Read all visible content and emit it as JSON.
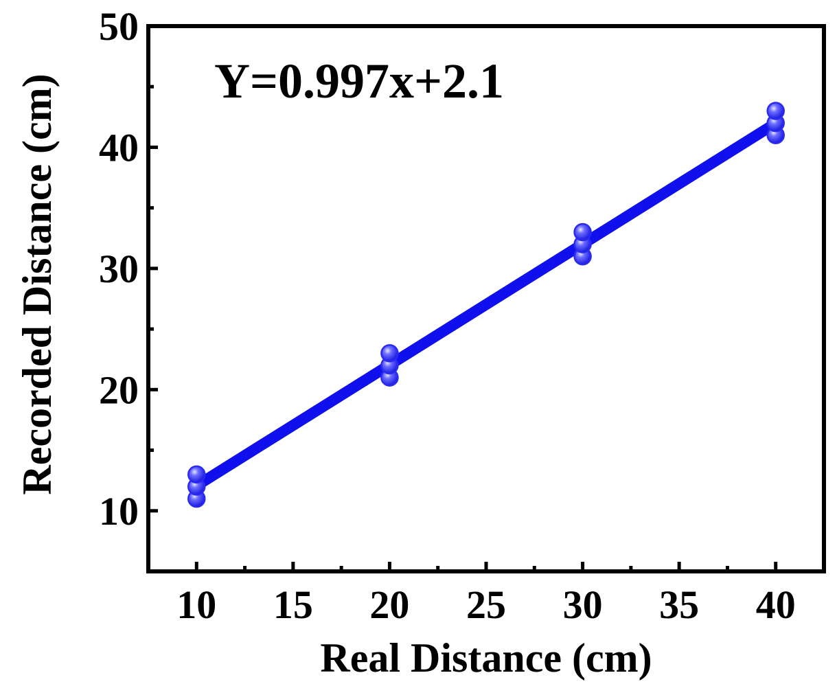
{
  "chart_data": {
    "type": "scatter",
    "title": "",
    "xlabel": "Real Distance (cm)",
    "ylabel": "Recorded Distance (cm)",
    "xlim": [
      7.5,
      42.5
    ],
    "ylim": [
      5,
      50
    ],
    "xticks": [
      10,
      15,
      20,
      25,
      30,
      35,
      40
    ],
    "yticks": [
      10,
      20,
      30,
      40,
      50
    ],
    "xtick_labels": [
      "10",
      "15",
      "20",
      "25",
      "30",
      "35",
      "40"
    ],
    "ytick_labels": [
      "10",
      "20",
      "30",
      "40",
      "50"
    ],
    "grid": false,
    "legend": "none",
    "annotation": "Y=0.997x+2.1",
    "fit_line": {
      "slope": 0.997,
      "intercept": 2.1,
      "x_range": [
        10,
        40
      ]
    },
    "series": [
      {
        "x": [
          10,
          10,
          10,
          20,
          20,
          20,
          30,
          30,
          30,
          40,
          40,
          40
        ],
        "y": [
          11,
          12,
          13,
          21,
          22,
          23,
          31,
          32,
          33,
          41,
          42,
          43
        ]
      }
    ],
    "colors": {
      "line": "#1010ee",
      "marker": "#2a2af0",
      "marker_highlight": "#e6e6ff",
      "axis": "#000000"
    }
  }
}
